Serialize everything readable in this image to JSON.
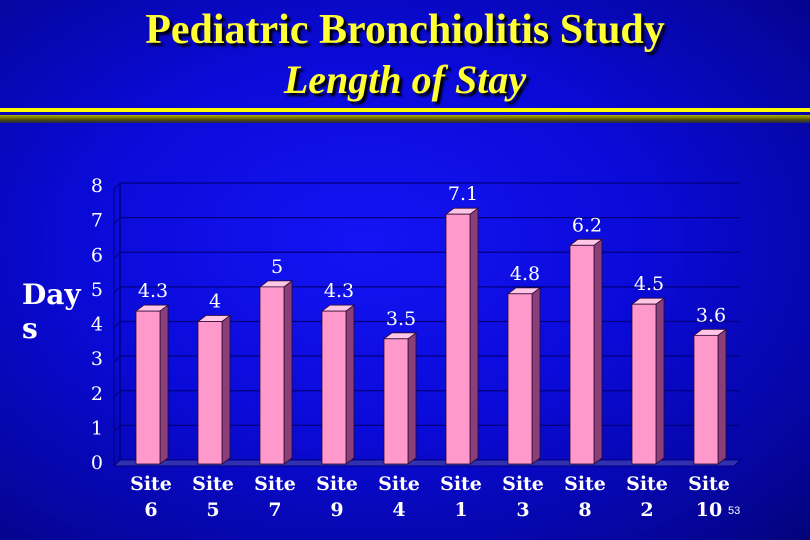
{
  "slide": {
    "title_line1": "Pediatric Bronchiolitis Study",
    "title_line2": "Length of Stay",
    "page_number": "53"
  },
  "chart_data": {
    "type": "bar",
    "categories": [
      "Site 6",
      "Site 5",
      "Site 7",
      "Site 9",
      "Site 4",
      "Site 1",
      "Site 3",
      "Site 8",
      "Site 2",
      "Site 10"
    ],
    "category_lines": [
      [
        "Site",
        "6"
      ],
      [
        "Site",
        "5"
      ],
      [
        "Site",
        "7"
      ],
      [
        "Site",
        "9"
      ],
      [
        "Site",
        "4"
      ],
      [
        "Site",
        "1"
      ],
      [
        "Site",
        "3"
      ],
      [
        "Site",
        "8"
      ],
      [
        "Site",
        "2"
      ],
      [
        "Site",
        "10"
      ]
    ],
    "values": [
      4.3,
      4,
      5,
      4.3,
      3.5,
      7.1,
      4.8,
      6.2,
      4.5,
      3.6
    ],
    "data_labels": [
      "4.3",
      "4",
      "5",
      "4.3",
      "3.5",
      "7.1",
      "4.8",
      "6.2",
      "4.5",
      "3.6"
    ],
    "ylabel_lines": [
      "Day",
      "s"
    ],
    "ylim": [
      0,
      8
    ],
    "yticks": [
      0,
      1,
      2,
      3,
      4,
      5,
      6,
      7,
      8
    ],
    "grid": true,
    "bar_color": "#ff99cc",
    "gridline_color": "#000080",
    "text_color": "#ffffff"
  }
}
